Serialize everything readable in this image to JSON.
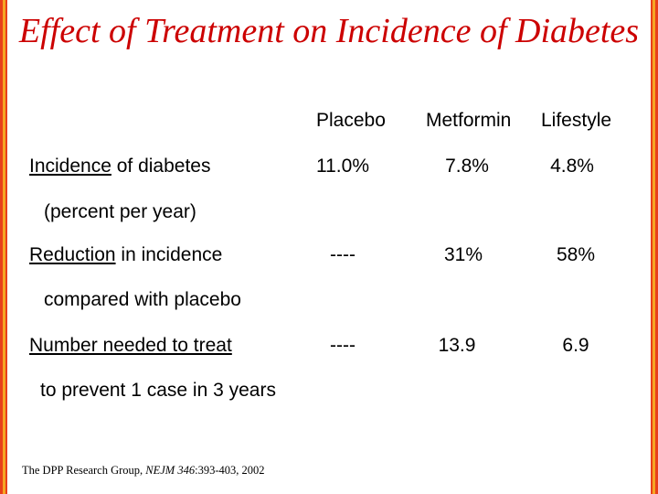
{
  "title": "Effect of Treatment on Incidence of Diabetes",
  "columns": [
    "Placebo",
    "Metformin",
    "Lifestyle"
  ],
  "rows": [
    {
      "label_underlined": "Incidence",
      "label_rest": " of diabetes",
      "sub_label": "(percent per year)",
      "values": [
        "11.0%",
        "7.8%",
        "4.8%"
      ]
    },
    {
      "label_underlined": "Reduction",
      "label_rest": " in incidence",
      "sub_label": "compared with placebo",
      "values": [
        "----",
        "31%",
        "58%"
      ]
    },
    {
      "label_underlined": "Number needed to treat",
      "label_rest": "",
      "sub_label": "to prevent 1 case in 3 years",
      "values": [
        "----",
        "13.9",
        "6.9"
      ]
    }
  ],
  "citation": {
    "authors": "The DPP Research Group, ",
    "journal": "NEJM 346",
    "pages": ":393-403, 2002"
  },
  "colors": {
    "title": "#cc0000",
    "border_outer": "#e8401a",
    "border_inner": "#f5a623"
  }
}
